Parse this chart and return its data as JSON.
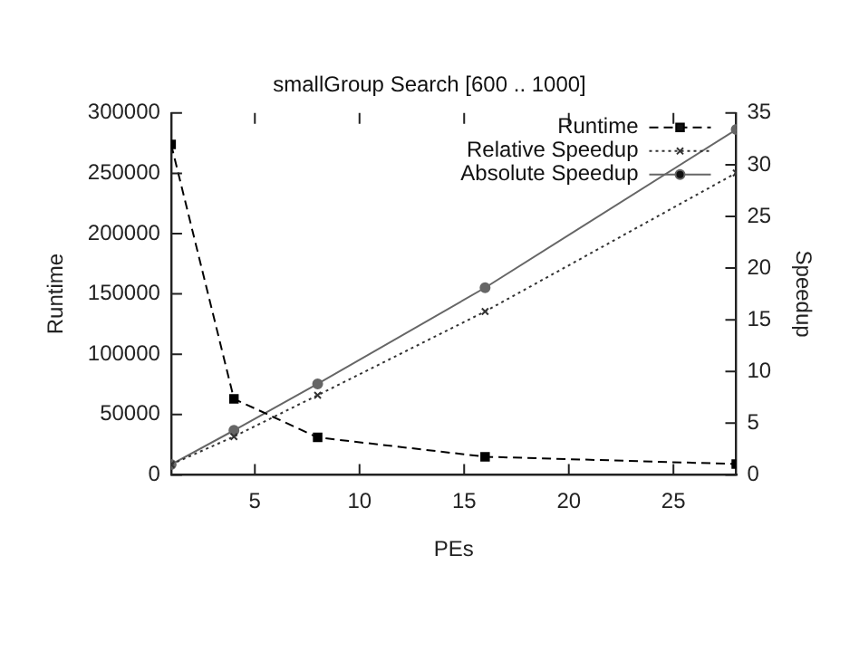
{
  "chart_data": {
    "type": "line",
    "title": "smallGroup Search [600 .. 1000]",
    "xlabel": "PEs",
    "ylabel": "Runtime",
    "y2label": "Speedup",
    "x": [
      1,
      4,
      8,
      16,
      28
    ],
    "xlim": [
      1,
      28
    ],
    "xticks": [
      5,
      10,
      15,
      20,
      25
    ],
    "ylim": [
      0,
      300000
    ],
    "yticks": [
      0,
      50000,
      100000,
      150000,
      200000,
      250000,
      300000
    ],
    "y2lim": [
      0,
      35
    ],
    "y2ticks": [
      0,
      5,
      10,
      15,
      20,
      25,
      30,
      35
    ],
    "grid": false,
    "legend": "top right",
    "series": [
      {
        "name": "Runtime",
        "color": "#000000",
        "values": [
          274000,
          63000,
          31000,
          15000,
          9000
        ],
        "marker": "square",
        "line_style": "dashed"
      },
      {
        "name": "Relative Speedup",
        "color": "#333333",
        "values": [
          1,
          3.7,
          7.7,
          15.8,
          29.2
        ],
        "axis": "y2",
        "marker": "cross",
        "line_style": "dotted"
      },
      {
        "name": "Absolute Speedup",
        "color": "#666666",
        "values": [
          1,
          4.3,
          8.8,
          18.1,
          33.4
        ],
        "axis": "y2",
        "marker": "circle",
        "line_style": "solid"
      }
    ]
  }
}
